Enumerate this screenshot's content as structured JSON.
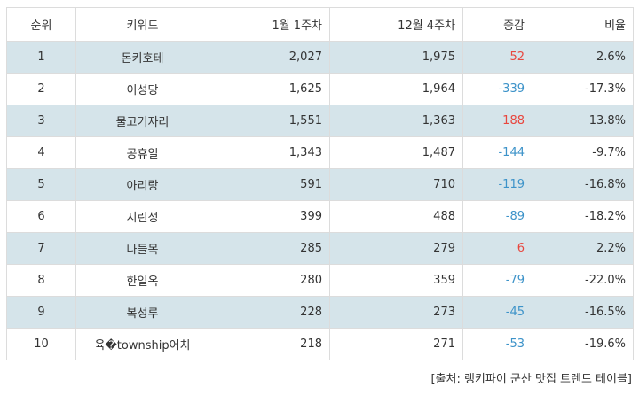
{
  "table": {
    "headers": {
      "rank": "순위",
      "keyword": "키워드",
      "week_a": "1월 1주차",
      "week_b": "12월 4주차",
      "change": "증감",
      "ratio": "비율"
    },
    "rows": [
      {
        "rank": "1",
        "keyword": "돈키호테",
        "week_a": "2,027",
        "week_b": "1,975",
        "change": "52",
        "ratio": "2.6%"
      },
      {
        "rank": "2",
        "keyword": "이성당",
        "week_a": "1,625",
        "week_b": "1,964",
        "change": "-339",
        "ratio": "-17.3%"
      },
      {
        "rank": "3",
        "keyword": "물고기자리",
        "week_a": "1,551",
        "week_b": "1,363",
        "change": "188",
        "ratio": "13.8%"
      },
      {
        "rank": "4",
        "keyword": "공휴일",
        "week_a": "1,343",
        "week_b": "1,487",
        "change": "-144",
        "ratio": "-9.7%"
      },
      {
        "rank": "5",
        "keyword": "아리랑",
        "week_a": "591",
        "week_b": "710",
        "change": "-119",
        "ratio": "-16.8%"
      },
      {
        "rank": "6",
        "keyword": "지린성",
        "week_a": "399",
        "week_b": "488",
        "change": "-89",
        "ratio": "-18.2%"
      },
      {
        "rank": "7",
        "keyword": "나들목",
        "week_a": "285",
        "week_b": "279",
        "change": "6",
        "ratio": "2.2%"
      },
      {
        "rank": "8",
        "keyword": "한일옥",
        "week_a": "280",
        "week_b": "359",
        "change": "-79",
        "ratio": "-22.0%"
      },
      {
        "rank": "9",
        "keyword": "복성루",
        "week_a": "228",
        "week_b": "273",
        "change": "-45",
        "ratio": "-16.5%"
      },
      {
        "rank": "10",
        "keyword": "육�township어치",
        "week_a": "218",
        "week_b": "271",
        "change": "-53",
        "ratio": "-19.6%"
      }
    ]
  },
  "source": "[출처: 랭키파이 군산 맛집 트렌드 테이블]",
  "colors": {
    "row_shade": "#d5e4ea",
    "increase": "#e8473f",
    "decrease": "#3d93c9",
    "border": "#dcdcdc"
  }
}
